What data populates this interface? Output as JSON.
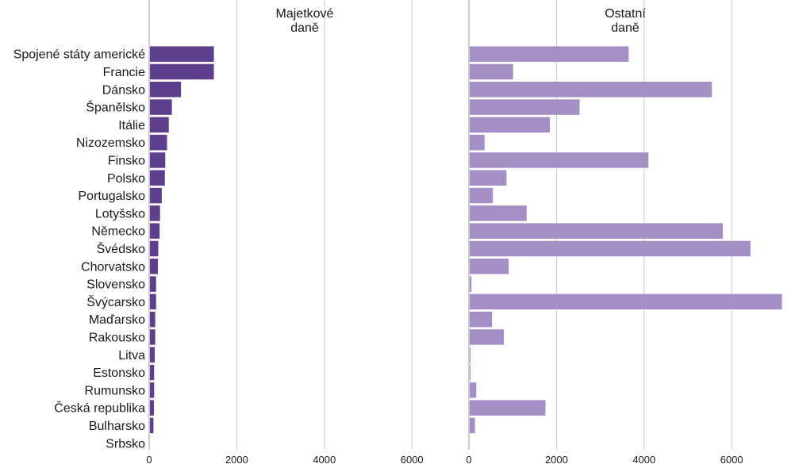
{
  "chart_data": {
    "type": "bar",
    "orientation": "horizontal",
    "categories": [
      "Spojené státy americké",
      "Francie",
      "Dánsko",
      "Španělsko",
      "Itálie",
      "Nizozemsko",
      "Finsko",
      "Polsko",
      "Portugalsko",
      "Lotyšsko",
      "Německo",
      "Švédsko",
      "Chorvatsko",
      "Slovensko",
      "Švýcarsko",
      "Maďarsko",
      "Rakousko",
      "Litva",
      "Estonsko",
      "Rumunsko",
      "Česká republika",
      "Bulharsko",
      "Srbsko"
    ],
    "panels": [
      {
        "title": [
          "Majetkové",
          "daně"
        ],
        "color": "#5e3f8d",
        "xlim": [
          0,
          7100
        ],
        "ticks": [
          0,
          2000,
          4000,
          6000
        ],
        "values": [
          1460,
          1460,
          710,
          500,
          430,
          390,
          350,
          340,
          270,
          230,
          220,
          190,
          180,
          140,
          140,
          120,
          120,
          110,
          95,
          95,
          90,
          80,
          0
        ]
      },
      {
        "title": [
          "Ostatní",
          "daně"
        ],
        "color": "#a48ec5",
        "xlim": [
          0,
          7100
        ],
        "ticks": [
          0,
          2000,
          4000,
          6000
        ],
        "values": [
          3630,
          990,
          5530,
          2510,
          1830,
          340,
          4080,
          840,
          530,
          1300,
          5780,
          6410,
          890,
          40,
          7130,
          510,
          780,
          15,
          15,
          150,
          1730,
          120,
          0
        ]
      }
    ],
    "grid": true,
    "legend": "none"
  }
}
